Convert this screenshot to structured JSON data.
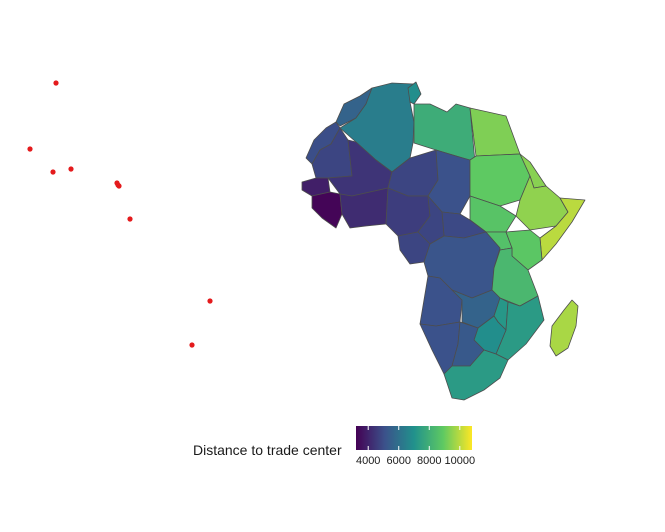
{
  "chart_data": {
    "type": "choropleth",
    "region": "Africa",
    "legend": {
      "title": "Distance to trade center",
      "ticks": [
        4000,
        6000,
        8000,
        10000
      ],
      "tick_labels": [
        "4000",
        "6000",
        "8000",
        "10000"
      ],
      "range": [
        3200,
        10800
      ],
      "palette": "viridis",
      "placement": "bottom"
    },
    "regions": [
      {
        "name": "Morocco",
        "value": 5600
      },
      {
        "name": "Algeria",
        "value": 6400
      },
      {
        "name": "Tunisia",
        "value": 6900
      },
      {
        "name": "Libya",
        "value": 7900
      },
      {
        "name": "Egypt",
        "value": 9300
      },
      {
        "name": "Western Sahara",
        "value": 5000
      },
      {
        "name": "Mauritania",
        "value": 4800
      },
      {
        "name": "Mali",
        "value": 4400
      },
      {
        "name": "Niger",
        "value": 4800
      },
      {
        "name": "Chad",
        "value": 5100
      },
      {
        "name": "Sudan",
        "value": 8900
      },
      {
        "name": "South Sudan",
        "value": 8700
      },
      {
        "name": "Ethiopia",
        "value": 9500
      },
      {
        "name": "Eritrea",
        "value": 9400
      },
      {
        "name": "Somalia",
        "value": 10000
      },
      {
        "name": "Senegal",
        "value": 3900
      },
      {
        "name": "Guinea",
        "value": 3300
      },
      {
        "name": "Burkina Faso",
        "value": 4200
      },
      {
        "name": "Nigeria",
        "value": 4600
      },
      {
        "name": "Central African Republic",
        "value": 4900
      },
      {
        "name": "Cameroon",
        "value": 4800
      },
      {
        "name": "Gabon",
        "value": 4800
      },
      {
        "name": "DR Congo",
        "value": 5200
      },
      {
        "name": "Uganda",
        "value": 8600
      },
      {
        "name": "Kenya",
        "value": 8800
      },
      {
        "name": "Tanzania",
        "value": 8300
      },
      {
        "name": "Angola",
        "value": 5100
      },
      {
        "name": "Zambia",
        "value": 5600
      },
      {
        "name": "Malawi",
        "value": 7200
      },
      {
        "name": "Mozambique",
        "value": 7300
      },
      {
        "name": "Zimbabwe",
        "value": 6900
      },
      {
        "name": "Namibia",
        "value": 5100
      },
      {
        "name": "Botswana",
        "value": 5300
      },
      {
        "name": "South Africa",
        "value": 7300
      },
      {
        "name": "Madagascar",
        "value": 9800
      }
    ],
    "points": [
      {
        "name": "island-point-1",
        "color": "#e41a1c"
      },
      {
        "name": "island-point-2",
        "color": "#e41a1c"
      },
      {
        "name": "island-point-3",
        "color": "#e41a1c"
      },
      {
        "name": "island-point-4",
        "color": "#e41a1c"
      },
      {
        "name": "island-point-5",
        "color": "#e41a1c"
      },
      {
        "name": "island-point-6",
        "color": "#e41a1c"
      },
      {
        "name": "island-point-7",
        "color": "#e41a1c"
      },
      {
        "name": "island-point-8",
        "color": "#e41a1c"
      },
      {
        "name": "island-point-9",
        "color": "#e41a1c"
      },
      {
        "name": "island-point-10",
        "color": "#e41a1c"
      }
    ]
  }
}
